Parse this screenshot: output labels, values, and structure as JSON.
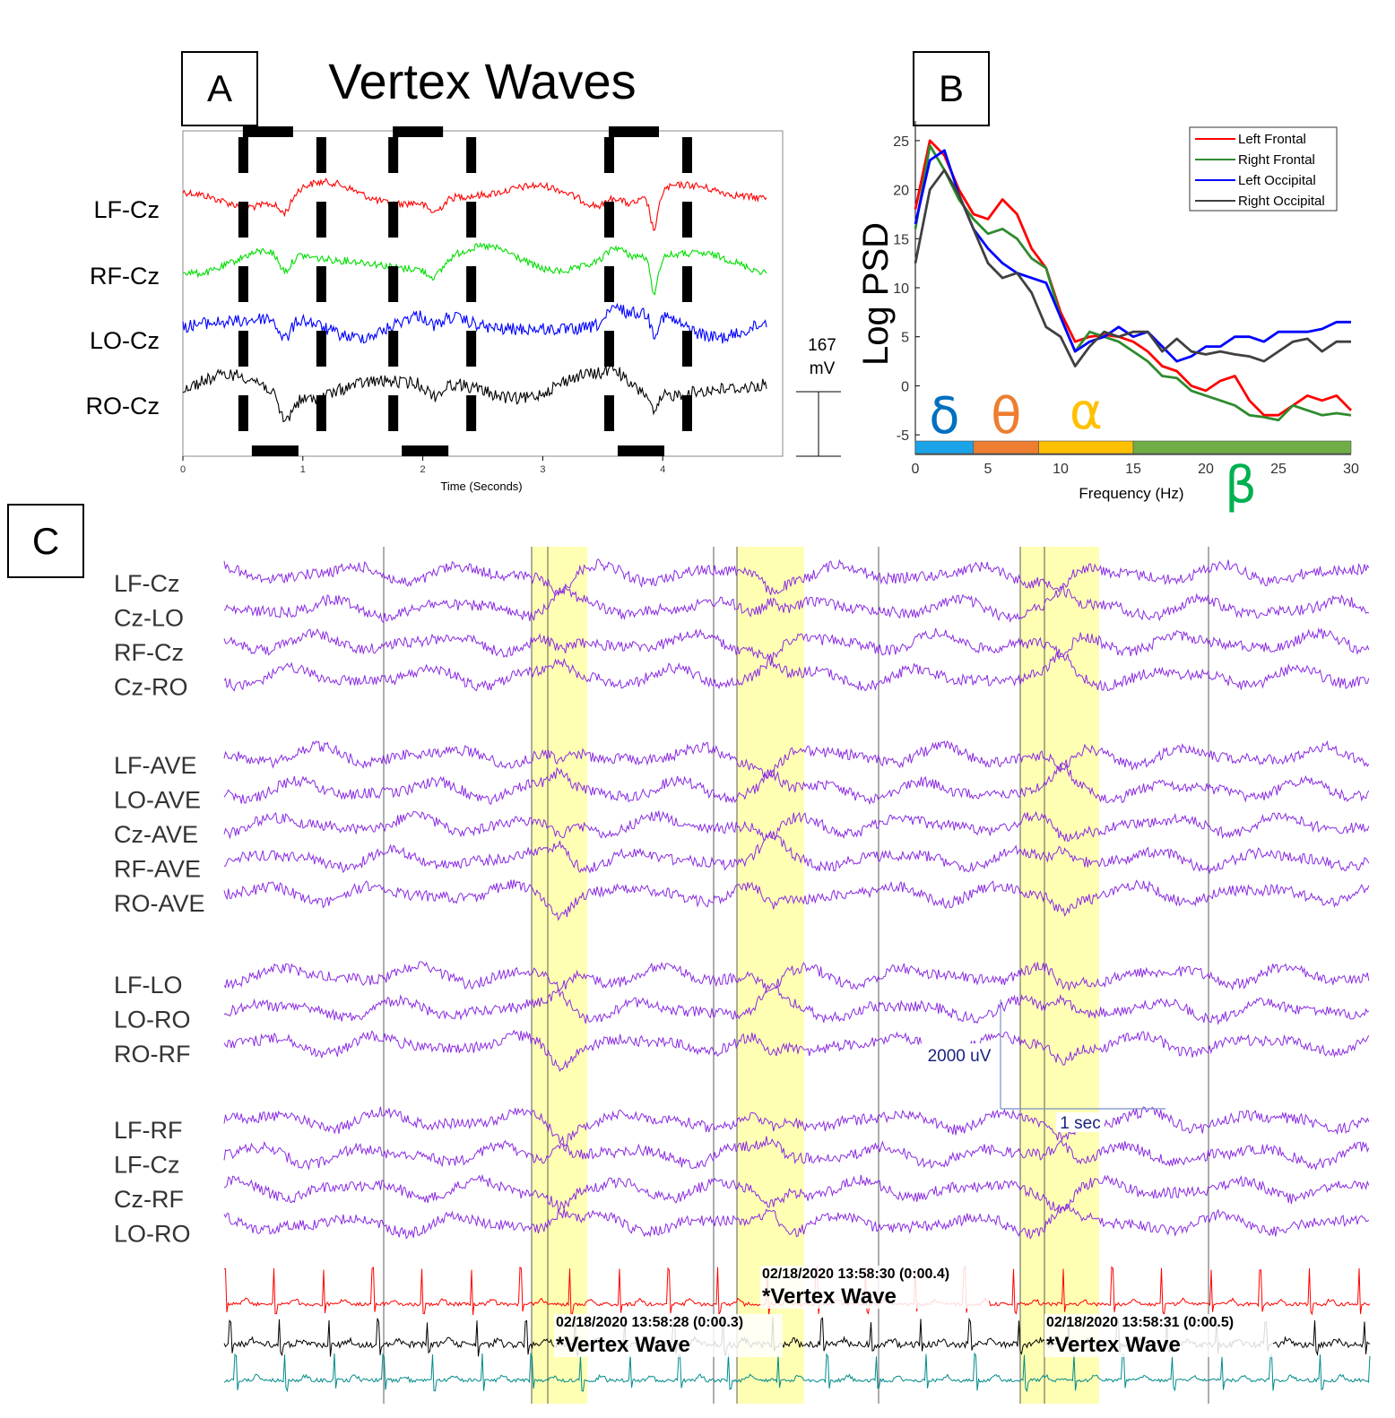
{
  "chart_data": [
    {
      "panel": "A",
      "type": "line",
      "title": "Vertex Waves",
      "xlabel": "Time (Seconds)",
      "ylabel": "",
      "xlim": [
        0,
        5
      ],
      "xticks": [
        "0",
        "1",
        "2",
        "3",
        "4"
      ],
      "series": [
        {
          "name": "LF-Cz",
          "color": "#ff0000"
        },
        {
          "name": "RF-Cz",
          "color": "#00dd00"
        },
        {
          "name": "LO-Cz",
          "color": "#0000ff"
        },
        {
          "name": "RO-Cz",
          "color": "#000000"
        }
      ],
      "vertex_wave_windows_s": [
        [
          0.5,
          1.15
        ],
        [
          1.75,
          2.4
        ],
        [
          3.55,
          4.2
        ]
      ],
      "scale_bar": {
        "value": "167",
        "unit": "mV"
      }
    },
    {
      "panel": "B",
      "type": "line",
      "xlabel": "Frequency (Hz)",
      "ylabel": "Log PSD",
      "xlim": [
        0,
        30
      ],
      "ylim": [
        -7,
        27
      ],
      "xticks": [
        "0",
        "5",
        "10",
        "15",
        "20",
        "25",
        "30"
      ],
      "yticks": [
        "25",
        "20",
        "15",
        "10",
        "5",
        "0",
        "-5"
      ],
      "legend_position": "top-right",
      "x": [
        0,
        1,
        2,
        3,
        4,
        5,
        6,
        7,
        8,
        9,
        10,
        11,
        12,
        13,
        14,
        15,
        16,
        17,
        18,
        19,
        20,
        21,
        22,
        23,
        24,
        25,
        26,
        27,
        28,
        29,
        30
      ],
      "series": [
        {
          "name": "Left Frontal",
          "color": "#ff0000",
          "values": [
            18,
            25,
            23.5,
            20,
            17.5,
            17,
            19,
            17.5,
            14,
            12,
            7.5,
            4.5,
            5,
            5.2,
            5,
            4.5,
            3.5,
            2,
            1.5,
            0,
            -0.5,
            0.5,
            1,
            -1.5,
            -3,
            -3,
            -2,
            -1,
            -1.5,
            -1,
            -2.5
          ]
        },
        {
          "name": "Right Frontal",
          "color": "#2e8b2e",
          "values": [
            16,
            24.5,
            22,
            19,
            17,
            15.5,
            16,
            15,
            13,
            12,
            7,
            3.5,
            5.5,
            5,
            4.5,
            3.5,
            2.5,
            1,
            0.8,
            -0.5,
            -1,
            -1.5,
            -2,
            -3,
            -3.2,
            -3.5,
            -2,
            -2.5,
            -3,
            -2.8,
            -3
          ]
        },
        {
          "name": "Left Occipital",
          "color": "#0000ff",
          "values": [
            16.5,
            23,
            24,
            19.5,
            16,
            14,
            12.5,
            11.5,
            11,
            10.5,
            7,
            3.5,
            4.5,
            5,
            6,
            5,
            5.5,
            4,
            2.5,
            3,
            4,
            4,
            5,
            5,
            4.5,
            5.5,
            5.5,
            5.5,
            5.8,
            6.5,
            6.5
          ]
        },
        {
          "name": "Right Occipital",
          "color": "#404040",
          "values": [
            12.5,
            20,
            22,
            19.5,
            16,
            12.5,
            11,
            11.5,
            9.5,
            6,
            5,
            2,
            4,
            5.5,
            5,
            5.5,
            5.5,
            3.5,
            4.8,
            3.5,
            3.2,
            3.5,
            3.2,
            3,
            2.5,
            3.5,
            4.5,
            4.8,
            3.5,
            4.5,
            4.5
          ]
        }
      ],
      "bands": [
        {
          "symbol": "δ",
          "from_hz": 0,
          "to_hz": 4,
          "color": "#1aa3e8",
          "label_color": "#0070c0"
        },
        {
          "symbol": "θ",
          "from_hz": 4,
          "to_hz": 8.5,
          "color": "#ed7d31",
          "label_color": "#ed7d31"
        },
        {
          "symbol": "α",
          "from_hz": 8.5,
          "to_hz": 15,
          "color": "#ffc000",
          "label_color": "#ffc000"
        },
        {
          "symbol": "β",
          "from_hz": 15,
          "to_hz": 30,
          "color": "#70ad47",
          "label_color": "#00b050"
        }
      ]
    },
    {
      "panel": "C",
      "type": "line",
      "title": "",
      "trace_color": "#8a2be2",
      "channel_groups": [
        [
          "LF-Cz",
          "Cz-LO",
          "RF-Cz",
          "Cz-RO"
        ],
        [
          "LF-AVE",
          "LO-AVE",
          "Cz-AVE",
          "RF-AVE",
          "RO-AVE"
        ],
        [
          "LF-LO",
          "LO-RO",
          "RO-RF"
        ],
        [
          "LF-RF",
          "LF-Cz",
          "Cz-RF",
          "LO-RO"
        ]
      ],
      "bottom_trace_colors": [
        "#ff0000",
        "#000000",
        "#008b8b"
      ],
      "scale_bar": {
        "amplitude": "2000 uV",
        "time": "1 sec"
      },
      "events": [
        {
          "timestamp": "02/18/2020 13:58:28 (0:00.3)",
          "label": "*Vertex Wave"
        },
        {
          "timestamp": "02/18/2020 13:58:30 (0:00.4)",
          "label": "*Vertex Wave"
        },
        {
          "timestamp": "02/18/2020 13:58:31 (0:00.5)",
          "label": "*Vertex Wave"
        }
      ]
    }
  ]
}
